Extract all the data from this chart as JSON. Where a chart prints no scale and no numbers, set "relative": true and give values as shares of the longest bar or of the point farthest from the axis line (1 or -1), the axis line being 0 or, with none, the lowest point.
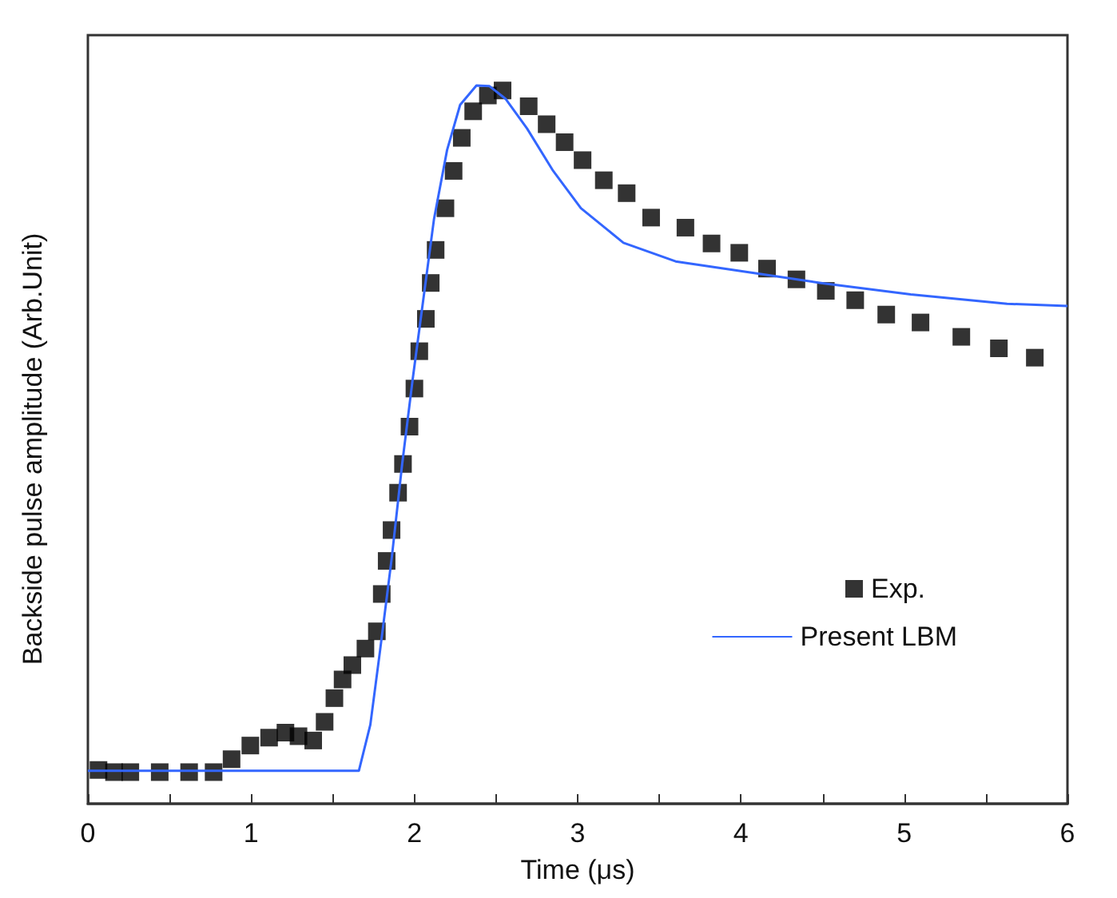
{
  "chart_data": {
    "type": "scatter",
    "xlabel": "Time (μs)",
    "ylabel": "Backside pulse amplitude (Arb.Unit)",
    "relative": true,
    "xlim": [
      0,
      6
    ],
    "xticks": [
      0,
      {
        "value": 0.5,
        "label": null
      },
      1,
      {
        "value": 1.5,
        "label": null
      },
      2,
      {
        "value": 2.5,
        "label": null
      },
      3,
      {
        "value": 3.5,
        "label": null
      },
      4,
      {
        "value": 4.5,
        "label": null
      },
      5,
      {
        "value": 5.5,
        "label": null
      },
      6
    ],
    "grid": false,
    "legend": "bottom right",
    "series": [
      {
        "name": "Exp.",
        "marker": "square",
        "color": "#000000",
        "x": [
          0.065,
          0.16,
          0.26,
          0.44,
          0.62,
          0.77,
          0.88,
          0.995,
          1.11,
          1.21,
          1.29,
          1.38,
          1.45,
          1.51,
          1.56,
          1.62,
          1.7,
          1.77,
          1.8,
          1.83,
          1.86,
          1.9,
          1.93,
          1.97,
          2.0,
          2.03,
          2.07,
          2.1,
          2.13,
          2.19,
          2.24,
          2.29,
          2.36,
          2.45,
          2.54,
          2.7,
          2.81,
          2.92,
          3.03,
          3.16,
          3.3,
          3.45,
          3.66,
          3.82,
          3.99,
          4.16,
          4.34,
          4.52,
          4.7,
          4.89,
          5.1,
          5.35,
          5.58,
          5.8
        ],
        "values": [
          0.047,
          0.044,
          0.044,
          0.044,
          0.044,
          0.044,
          0.062,
          0.081,
          0.092,
          0.099,
          0.094,
          0.088,
          0.114,
          0.147,
          0.173,
          0.193,
          0.216,
          0.24,
          0.292,
          0.338,
          0.381,
          0.433,
          0.473,
          0.525,
          0.578,
          0.63,
          0.675,
          0.725,
          0.771,
          0.829,
          0.881,
          0.927,
          0.964,
          0.986,
          0.993,
          0.971,
          0.946,
          0.921,
          0.896,
          0.868,
          0.85,
          0.816,
          0.802,
          0.78,
          0.767,
          0.745,
          0.73,
          0.714,
          0.701,
          0.681,
          0.67,
          0.65,
          0.634,
          0.621
        ]
      },
      {
        "name": "Present LBM",
        "type": "line",
        "marker": "none",
        "line_style": "solid",
        "color": "#3366ff",
        "x": [
          0,
          1.66,
          1.73,
          1.79,
          1.86,
          1.925,
          1.99,
          2.055,
          2.12,
          2.2,
          2.28,
          2.38,
          2.46,
          2.56,
          2.69,
          2.85,
          3.02,
          3.28,
          3.6,
          3.99,
          4.49,
          5.04,
          5.63,
          6.0
        ],
        "values": [
          0.046,
          0.046,
          0.11,
          0.214,
          0.34,
          0.473,
          0.592,
          0.703,
          0.814,
          0.91,
          0.973,
          1.0,
          0.999,
          0.981,
          0.94,
          0.881,
          0.829,
          0.781,
          0.755,
          0.742,
          0.725,
          0.709,
          0.696,
          0.693
        ]
      }
    ]
  }
}
